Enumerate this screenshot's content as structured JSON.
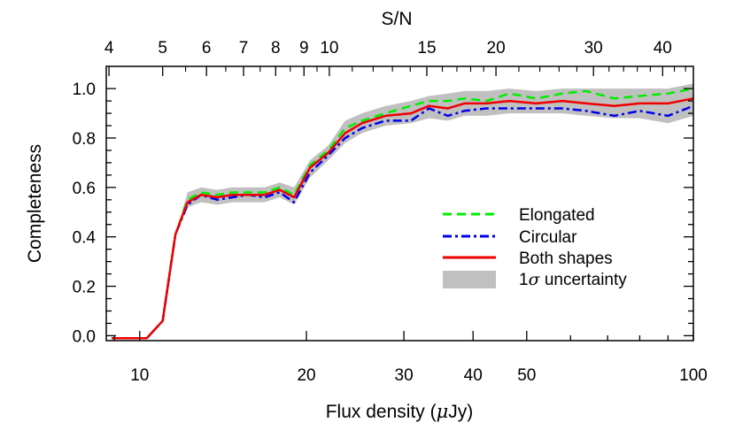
{
  "chart_data": {
    "type": "line",
    "xlabel_prefix": "Flux density (",
    "xlabel_mu": "μ",
    "xlabel_suffix": "Jy)",
    "ylabel": "Completeness",
    "top_axis_label": "S/N",
    "x_scale": "log",
    "xlim": [
      8.7,
      100
    ],
    "ylim": [
      -0.02,
      1.09
    ],
    "x_ticks": [
      10,
      20,
      30,
      40,
      50,
      100
    ],
    "y_ticks": [
      {
        "value": 0.0,
        "label": "0.0"
      },
      {
        "value": 0.2,
        "label": "0.2"
      },
      {
        "value": 0.4,
        "label": "0.4"
      },
      {
        "value": 0.6,
        "label": "0.6"
      },
      {
        "value": 0.8,
        "label": "0.8"
      },
      {
        "value": 1.0,
        "label": "1.0"
      }
    ],
    "top_ticks": [
      {
        "flux": 8.8,
        "label": "4"
      },
      {
        "flux": 11.0,
        "label": "5"
      },
      {
        "flux": 13.2,
        "label": "6"
      },
      {
        "flux": 15.4,
        "label": "7"
      },
      {
        "flux": 17.6,
        "label": "8"
      },
      {
        "flux": 19.8,
        "label": "9"
      },
      {
        "flux": 22.0,
        "label": "10"
      },
      {
        "flux": 33.0,
        "label": "15"
      },
      {
        "flux": 44.0,
        "label": "20"
      },
      {
        "flux": 66.0,
        "label": "30"
      },
      {
        "flux": 88.0,
        "label": "40"
      }
    ],
    "x": [
      8.9,
      9.5,
      10.3,
      11.0,
      11.6,
      12.2,
      12.9,
      13.8,
      14.7,
      15.7,
      16.8,
      17.9,
      19.0,
      20.3,
      21.9,
      23.5,
      25.2,
      27.8,
      30.9,
      33.3,
      36.0,
      38.6,
      42.3,
      46.5,
      52.0,
      58.0,
      64.0,
      72.0,
      80.0,
      90.0,
      100.0
    ],
    "series": [
      {
        "name": "Elongated",
        "color": "#00ee00",
        "dash": "dashed",
        "values": [
          -0.01,
          -0.01,
          -0.01,
          0.06,
          0.41,
          0.55,
          0.58,
          0.57,
          0.58,
          0.58,
          0.58,
          0.6,
          0.57,
          0.69,
          0.75,
          0.84,
          0.87,
          0.9,
          0.93,
          0.95,
          0.95,
          0.96,
          0.95,
          0.98,
          0.96,
          0.98,
          0.99,
          0.96,
          0.97,
          0.98,
          1.0
        ]
      },
      {
        "name": "Circular",
        "color": "#0000ee",
        "dash": "dashdot",
        "values": [
          -0.01,
          -0.01,
          -0.01,
          0.06,
          0.41,
          0.53,
          0.57,
          0.55,
          0.56,
          0.57,
          0.56,
          0.58,
          0.54,
          0.66,
          0.73,
          0.8,
          0.84,
          0.87,
          0.87,
          0.92,
          0.89,
          0.91,
          0.92,
          0.92,
          0.92,
          0.92,
          0.91,
          0.89,
          0.91,
          0.89,
          0.93
        ]
      },
      {
        "name": "Both shapes",
        "color": "#ee0000",
        "dash": "solid",
        "values": [
          -0.01,
          -0.01,
          -0.01,
          0.06,
          0.41,
          0.54,
          0.57,
          0.56,
          0.57,
          0.57,
          0.57,
          0.59,
          0.56,
          0.68,
          0.74,
          0.82,
          0.86,
          0.89,
          0.9,
          0.93,
          0.92,
          0.94,
          0.94,
          0.95,
          0.94,
          0.95,
          0.94,
          0.93,
          0.94,
          0.94,
          0.96
        ]
      }
    ],
    "band": {
      "name": "1σ uncertainty",
      "name_prefix": "1",
      "name_sigma": "σ",
      "name_suffix": " uncertainty",
      "color": "#c0c0c0",
      "lower": [
        -0.01,
        -0.01,
        -0.01,
        0.06,
        0.41,
        0.52,
        0.54,
        0.53,
        0.54,
        0.54,
        0.54,
        0.56,
        0.53,
        0.64,
        0.71,
        0.78,
        0.82,
        0.85,
        0.86,
        0.88,
        0.87,
        0.89,
        0.89,
        0.9,
        0.9,
        0.9,
        0.89,
        0.88,
        0.88,
        0.86,
        0.89
      ],
      "upper": [
        -0.01,
        -0.01,
        -0.01,
        0.06,
        0.41,
        0.58,
        0.6,
        0.59,
        0.6,
        0.6,
        0.6,
        0.62,
        0.6,
        0.71,
        0.77,
        0.87,
        0.9,
        0.93,
        0.95,
        0.97,
        0.98,
        0.99,
        0.99,
        1.0,
        0.99,
        1.0,
        1.0,
        1.0,
        1.0,
        1.0,
        1.02
      ]
    },
    "legend_position": "center-right",
    "grid": false
  }
}
